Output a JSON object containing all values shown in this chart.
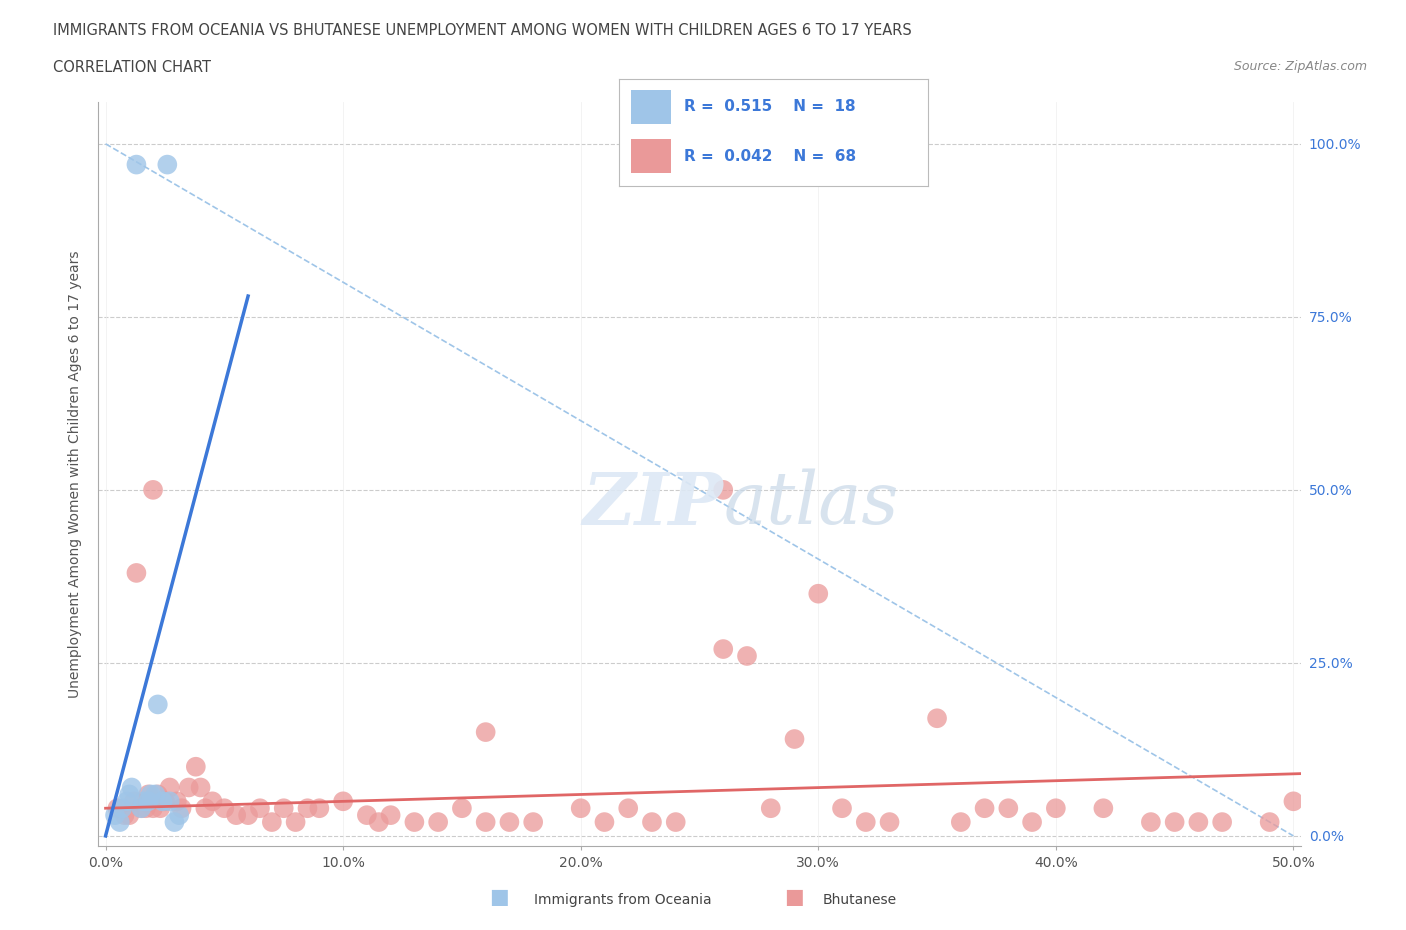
{
  "title_line1": "IMMIGRANTS FROM OCEANIA VS BHUTANESE UNEMPLOYMENT AMONG WOMEN WITH CHILDREN AGES 6 TO 17 YEARS",
  "title_line2": "CORRELATION CHART",
  "source_text": "Source: ZipAtlas.com",
  "ylabel": "Unemployment Among Women with Children Ages 6 to 17 years",
  "xlim": [
    -0.003,
    0.503
  ],
  "ylim": [
    -0.015,
    1.06
  ],
  "xtick_labels": [
    "0.0%",
    "10.0%",
    "20.0%",
    "30.0%",
    "40.0%",
    "50.0%"
  ],
  "xtick_values": [
    0.0,
    0.1,
    0.2,
    0.3,
    0.4,
    0.5
  ],
  "ytick_labels": [
    "100.0%",
    "75.0%",
    "50.0%",
    "25.0%",
    "0.0%"
  ],
  "ytick_values": [
    1.0,
    0.75,
    0.5,
    0.25,
    0.0
  ],
  "watermark_zip": "ZIP",
  "watermark_atlas": "atlas",
  "color_oceania": "#9fc5e8",
  "color_bhutanese": "#ea9999",
  "color_line_oceania": "#3c78d8",
  "color_line_bhutanese": "#e06666",
  "color_dashed": "#9fc5e8",
  "scatter_oceania_x": [
    0.013,
    0.026,
    0.004,
    0.006,
    0.007,
    0.009,
    0.01,
    0.011,
    0.015,
    0.016,
    0.018,
    0.019,
    0.021,
    0.022,
    0.024,
    0.027,
    0.029,
    0.031
  ],
  "scatter_oceania_y": [
    0.97,
    0.97,
    0.03,
    0.02,
    0.04,
    0.05,
    0.06,
    0.07,
    0.04,
    0.05,
    0.05,
    0.06,
    0.06,
    0.19,
    0.05,
    0.05,
    0.02,
    0.03
  ],
  "scatter_bhutanese_x": [
    0.005,
    0.008,
    0.01,
    0.012,
    0.015,
    0.017,
    0.018,
    0.02,
    0.022,
    0.023,
    0.025,
    0.027,
    0.03,
    0.032,
    0.035,
    0.038,
    0.04,
    0.042,
    0.045,
    0.05,
    0.055,
    0.06,
    0.065,
    0.07,
    0.075,
    0.08,
    0.085,
    0.09,
    0.1,
    0.11,
    0.115,
    0.12,
    0.13,
    0.14,
    0.15,
    0.16,
    0.17,
    0.18,
    0.2,
    0.21,
    0.22,
    0.23,
    0.24,
    0.26,
    0.27,
    0.28,
    0.29,
    0.3,
    0.31,
    0.32,
    0.33,
    0.35,
    0.36,
    0.37,
    0.38,
    0.39,
    0.4,
    0.42,
    0.44,
    0.45,
    0.46,
    0.47,
    0.49,
    0.5,
    0.16,
    0.26,
    0.013,
    0.02
  ],
  "scatter_bhutanese_y": [
    0.04,
    0.03,
    0.03,
    0.05,
    0.04,
    0.04,
    0.06,
    0.04,
    0.06,
    0.04,
    0.05,
    0.07,
    0.05,
    0.04,
    0.07,
    0.1,
    0.07,
    0.04,
    0.05,
    0.04,
    0.03,
    0.03,
    0.04,
    0.02,
    0.04,
    0.02,
    0.04,
    0.04,
    0.05,
    0.03,
    0.02,
    0.03,
    0.02,
    0.02,
    0.04,
    0.02,
    0.02,
    0.02,
    0.04,
    0.02,
    0.04,
    0.02,
    0.02,
    0.27,
    0.26,
    0.04,
    0.14,
    0.35,
    0.04,
    0.02,
    0.02,
    0.17,
    0.02,
    0.04,
    0.04,
    0.02,
    0.04,
    0.04,
    0.02,
    0.02,
    0.02,
    0.02,
    0.02,
    0.05,
    0.15,
    0.5,
    0.38,
    0.5
  ],
  "oceania_line_x": [
    0.0,
    0.06
  ],
  "oceania_line_y": [
    0.0,
    0.78
  ],
  "bhutanese_line_x": [
    0.0,
    0.503
  ],
  "bhutanese_line_y": [
    0.04,
    0.09
  ],
  "dashed_line_x": [
    0.0,
    0.5
  ],
  "dashed_line_y": [
    1.0,
    0.0
  ]
}
